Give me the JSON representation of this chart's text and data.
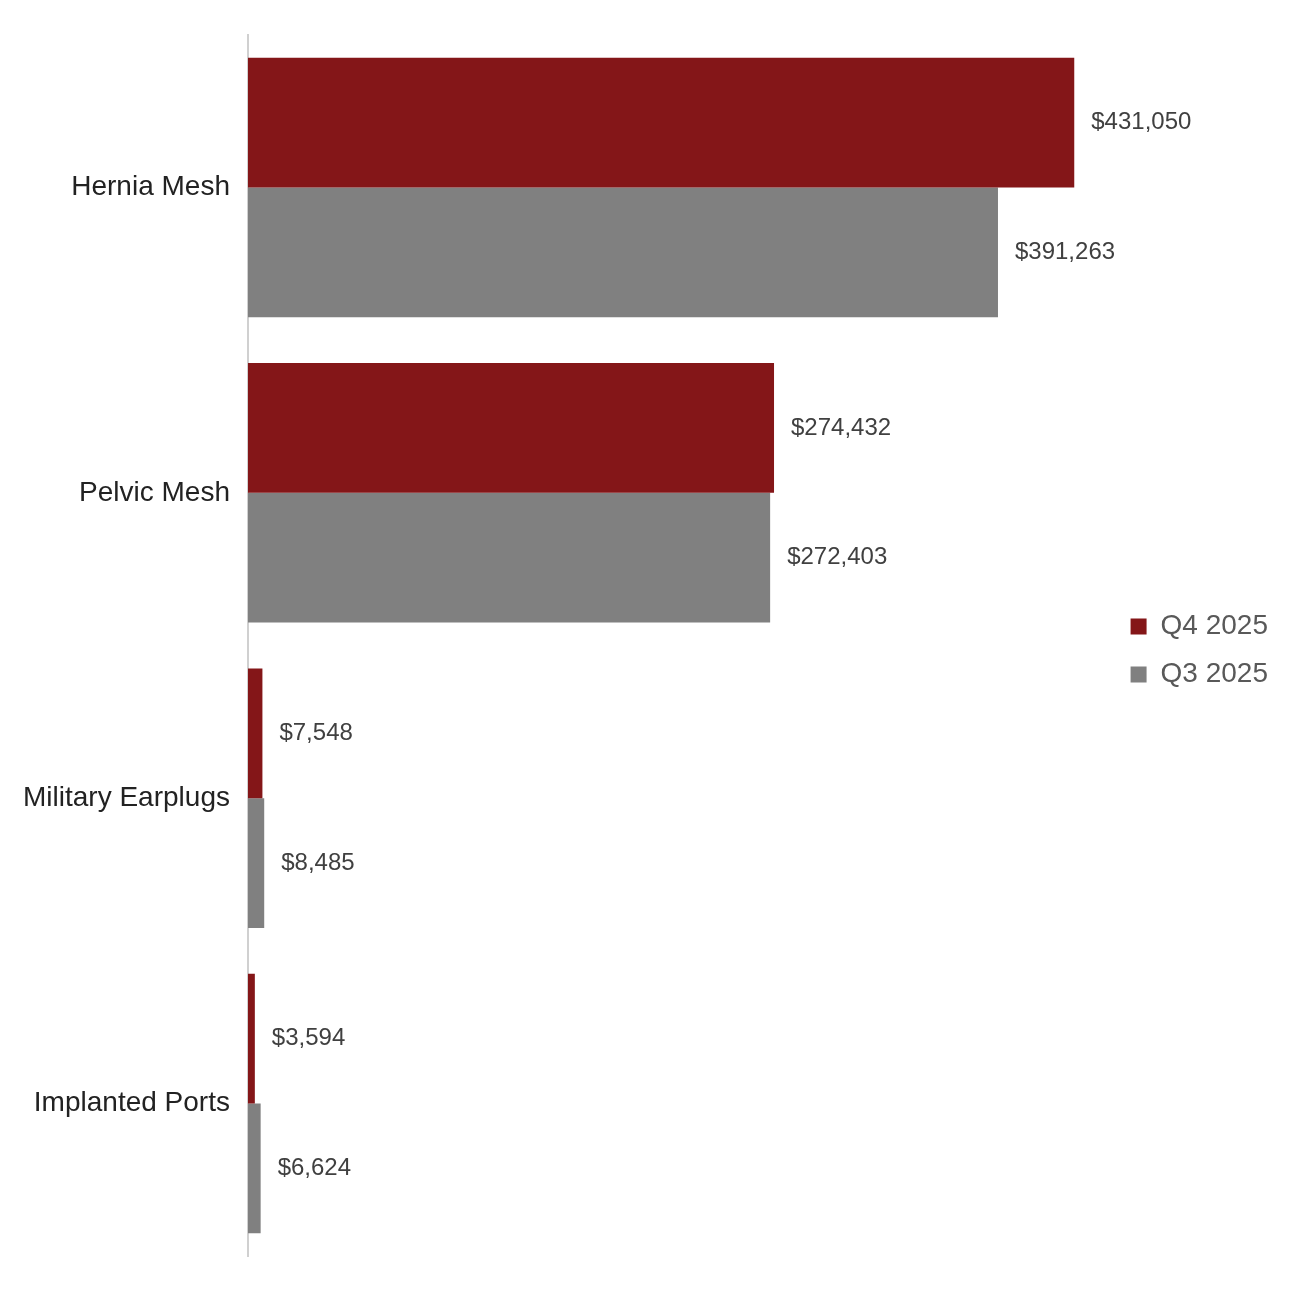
{
  "chart_data": {
    "type": "bar",
    "orientation": "horizontal",
    "categories": [
      "Hernia Mesh",
      "Pelvic Mesh",
      "Military Earplugs",
      "Implanted Ports"
    ],
    "series": [
      {
        "name": "Q4 2025",
        "color": "#841618",
        "values": [
          431050,
          274432,
          7548,
          3594
        ],
        "value_labels": [
          "$431,050",
          "$274,432",
          "$7,548",
          "$3,594"
        ]
      },
      {
        "name": "Q3 2025",
        "color": "#808080",
        "values": [
          391263,
          272403,
          8485,
          6624
        ],
        "value_labels": [
          "$391,263",
          "$272,403",
          "$8,485",
          "$6,624"
        ]
      }
    ],
    "legend": "right",
    "grid": false,
    "tick_labels": "y"
  }
}
